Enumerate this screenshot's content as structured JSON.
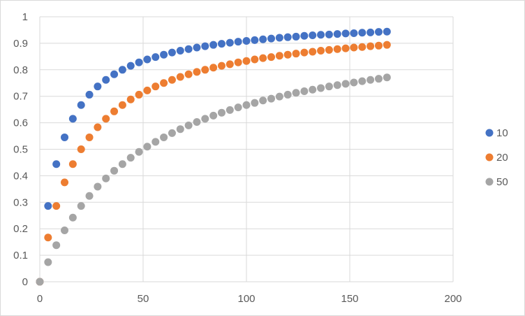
{
  "chart_data": {
    "type": "scatter",
    "title": "",
    "xlabel": "",
    "ylabel": "",
    "xlim": [
      0,
      200
    ],
    "ylim": [
      0,
      1
    ],
    "x_ticks": [
      "0",
      "50",
      "100",
      "150",
      "200"
    ],
    "y_ticks": [
      "0",
      "0.1",
      "0.2",
      "0.3",
      "0.4",
      "0.5",
      "0.6",
      "0.7",
      "0.8",
      "0.9",
      "1"
    ],
    "grid": "both",
    "legend_position": "right",
    "x": [
      0,
      4,
      8,
      12,
      16,
      20,
      24,
      28,
      32,
      36,
      40,
      44,
      48,
      52,
      56,
      60,
      64,
      68,
      72,
      76,
      80,
      84,
      88,
      92,
      96,
      100,
      104,
      108,
      112,
      116,
      120,
      124,
      128,
      132,
      136,
      140,
      144,
      148,
      152,
      156,
      160,
      164,
      168
    ],
    "series": [
      {
        "name": "10",
        "color": "#4472c4",
        "values": [
          0,
          0.286,
          0.444,
          0.545,
          0.615,
          0.667,
          0.706,
          0.737,
          0.762,
          0.783,
          0.8,
          0.815,
          0.828,
          0.839,
          0.848,
          0.857,
          0.865,
          0.872,
          0.878,
          0.884,
          0.889,
          0.894,
          0.898,
          0.902,
          0.906,
          0.909,
          0.912,
          0.915,
          0.918,
          0.921,
          0.923,
          0.925,
          0.928,
          0.93,
          0.932,
          0.933,
          0.935,
          0.937,
          0.938,
          0.94,
          0.941,
          0.943,
          0.944
        ]
      },
      {
        "name": "20",
        "color": "#ed7d31",
        "values": [
          0,
          0.167,
          0.286,
          0.375,
          0.444,
          0.5,
          0.545,
          0.583,
          0.615,
          0.643,
          0.667,
          0.688,
          0.706,
          0.722,
          0.737,
          0.75,
          0.762,
          0.773,
          0.783,
          0.792,
          0.8,
          0.808,
          0.815,
          0.821,
          0.828,
          0.833,
          0.839,
          0.844,
          0.848,
          0.853,
          0.857,
          0.861,
          0.865,
          0.868,
          0.872,
          0.875,
          0.878,
          0.881,
          0.884,
          0.886,
          0.889,
          0.891,
          0.894
        ]
      },
      {
        "name": "50",
        "color": "#a5a5a5",
        "values": [
          0,
          0.074,
          0.138,
          0.194,
          0.242,
          0.286,
          0.324,
          0.359,
          0.39,
          0.419,
          0.444,
          0.468,
          0.49,
          0.51,
          0.528,
          0.545,
          0.561,
          0.576,
          0.59,
          0.603,
          0.615,
          0.627,
          0.638,
          0.648,
          0.658,
          0.667,
          0.675,
          0.684,
          0.691,
          0.699,
          0.706,
          0.713,
          0.719,
          0.725,
          0.731,
          0.737,
          0.742,
          0.747,
          0.752,
          0.757,
          0.762,
          0.766,
          0.771
        ]
      }
    ]
  }
}
